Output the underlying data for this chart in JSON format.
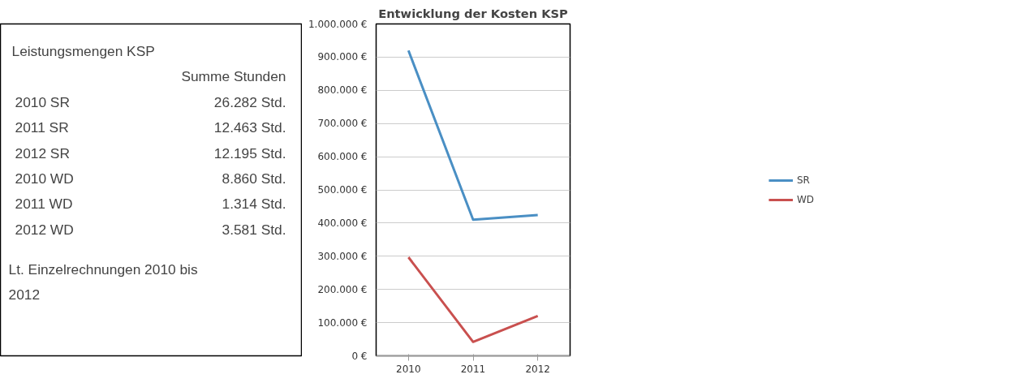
{
  "chart_data": [
    {
      "type": "other",
      "title": "Leistungsmengen KSP",
      "subtitle": "Summe Stunden",
      "annotations": [
        "2010 SR",
        "26.282 Std.",
        "2011 SR",
        "12.463 Std.",
        "2012 SR",
        "12.195 Std.",
        "2010 WD",
        "8.860 Std.",
        "2011 WD",
        "1.314 Std.",
        "2012 WD",
        "3.581 Std.",
        "Lt. Einzelrechnungen 2010 bis 2012"
      ]
    },
    {
      "type": "line",
      "title": "Entwicklung der Kosten KSP",
      "categories": [
        "2010",
        "2011",
        "2012"
      ],
      "series": [
        {
          "name": "SR",
          "color": "#4a8fc4",
          "values": [
            920000,
            410000,
            424000
          ]
        },
        {
          "name": "WD",
          "color": "#c9504f",
          "values": [
            297000,
            42000,
            120000
          ]
        }
      ],
      "ylim": [
        0,
        1000000
      ],
      "yticks": [
        {
          "value": 0,
          "label": "0 €"
        },
        {
          "value": 100000,
          "label": "100.000 €"
        },
        {
          "value": 200000,
          "label": "200.000 €"
        },
        {
          "value": 300000,
          "label": "300.000 €"
        },
        {
          "value": 400000,
          "label": "400.000 €"
        },
        {
          "value": 500000,
          "label": "500.000 €"
        },
        {
          "value": 600000,
          "label": "600.000 €"
        },
        {
          "value": 700000,
          "label": "700.000 €"
        },
        {
          "value": 800000,
          "label": "800.000 €"
        },
        {
          "value": 900000,
          "label": "900.000 €"
        },
        {
          "value": 1000000,
          "label": "1.000.000 €"
        }
      ],
      "grid": "y",
      "legend": "right",
      "marker": "none",
      "line_style": "solid"
    }
  ]
}
